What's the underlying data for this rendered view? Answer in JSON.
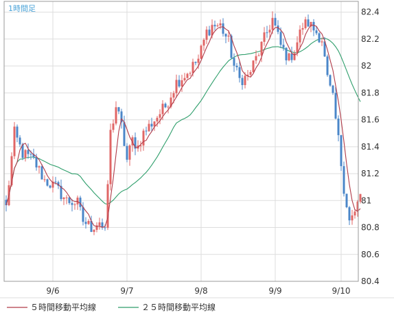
{
  "chart_data": {
    "type": "candlestick",
    "title": "1時間足",
    "x_tick_labels": [
      "9/6",
      "9/7",
      "9/8",
      "9/9",
      "9/10"
    ],
    "y_tick_labels": [
      "82.4",
      "82.2",
      "82",
      "81.8",
      "81.6",
      "81.4",
      "81.2",
      "81",
      "80.8",
      "80.6",
      "80.4"
    ],
    "ylim": [
      80.4,
      82.48
    ],
    "grid": true,
    "legend_position": "bottom-left",
    "colors": {
      "up": "#e06666",
      "down": "#4a86c8",
      "ma5": "#b03a48",
      "ma25": "#2e9e6b",
      "grid": "#dddddd",
      "frame": "#999999"
    },
    "series": [
      {
        "name": "５時間移動平均線",
        "color": "#b03a48"
      },
      {
        "name": "２５時間移動平均線",
        "color": "#2e9e6b"
      }
    ],
    "anchors": [
      [
        0,
        80.95
      ],
      [
        3,
        81.5
      ],
      [
        6,
        81.35
      ],
      [
        10,
        81.3
      ],
      [
        14,
        81.15
      ],
      [
        18,
        81.1
      ],
      [
        22,
        81.0
      ],
      [
        26,
        80.98
      ],
      [
        28,
        80.85
      ],
      [
        31,
        80.8
      ],
      [
        34,
        80.85
      ],
      [
        36,
        80.75
      ],
      [
        38,
        81.5
      ],
      [
        40,
        81.7
      ],
      [
        42,
        81.55
      ],
      [
        44,
        81.3
      ],
      [
        46,
        81.45
      ],
      [
        48,
        81.4
      ],
      [
        50,
        81.5
      ],
      [
        54,
        81.6
      ],
      [
        58,
        81.7
      ],
      [
        62,
        81.88
      ],
      [
        66,
        81.95
      ],
      [
        70,
        82.05
      ],
      [
        73,
        82.25
      ],
      [
        75,
        82.3
      ],
      [
        78,
        82.3
      ],
      [
        81,
        82.18
      ],
      [
        83,
        82.0
      ],
      [
        85,
        81.9
      ],
      [
        88,
        81.92
      ],
      [
        92,
        82.1
      ],
      [
        95,
        82.25
      ],
      [
        97,
        82.35
      ],
      [
        100,
        82.15
      ],
      [
        103,
        82.05
      ],
      [
        105,
        82.12
      ],
      [
        108,
        82.3
      ],
      [
        110,
        82.32
      ],
      [
        113,
        82.25
      ],
      [
        115,
        82.2
      ],
      [
        117,
        81.9
      ],
      [
        119,
        81.75
      ],
      [
        121,
        81.45
      ],
      [
        123,
        81.1
      ],
      [
        125,
        80.85
      ],
      [
        127,
        80.9
      ],
      [
        129,
        81.05
      ]
    ]
  }
}
